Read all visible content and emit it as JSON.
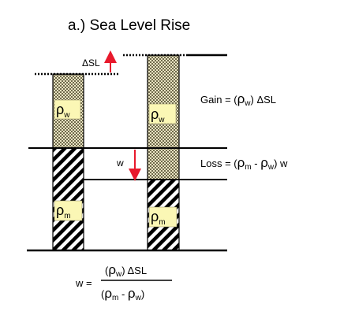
{
  "title": "a.) Sea Level Rise",
  "labels": {
    "delta_sl": "ΔSL",
    "w": "w",
    "rho": "ρ",
    "sub_w": "w",
    "sub_m": "m"
  },
  "equations": {
    "gain": {
      "prefix": "Gain = (",
      "suffix": ") ΔSL"
    },
    "loss": {
      "prefix": "Loss = (",
      "minus": " - ",
      "suffix": ") w"
    },
    "w_eq": {
      "lhs": "w =",
      "num_suffix": ") ΔSL",
      "den_minus": " - "
    }
  },
  "colors": {
    "arrow": "#e8192c",
    "label_box": "#fbf7b5",
    "water_fill": "#b9b38e",
    "mantle_fill": "#000000"
  }
}
